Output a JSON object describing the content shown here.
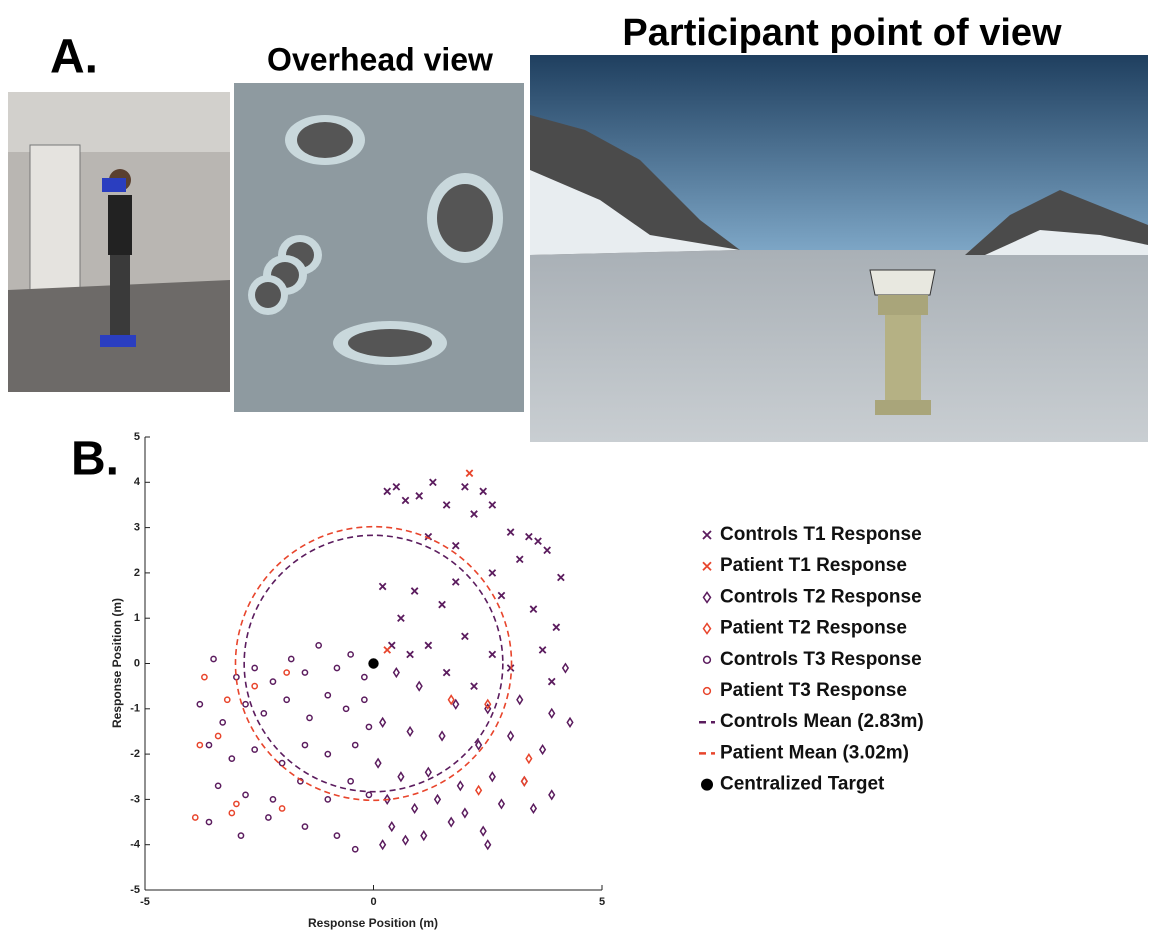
{
  "panel_a": {
    "label": "A.",
    "overhead_title": "Overhead view",
    "pov_title": "Participant point of view"
  },
  "chart_data": {
    "type": "scatter",
    "label": "B.",
    "xlabel": "Response Position (m)",
    "ylabel": "Response Position (m)",
    "xlim": [
      -5,
      5
    ],
    "ylim": [
      -5,
      5
    ],
    "xticks": [
      -5,
      0,
      5
    ],
    "yticks": [
      -5,
      -4,
      -3,
      -2,
      -1,
      0,
      1,
      2,
      3,
      4,
      5
    ],
    "series": [
      {
        "name": "Controls T1 Response",
        "color": "#5b1c5e",
        "marker": "x",
        "x": [
          0.3,
          0.5,
          0.7,
          1.0,
          1.3,
          1.6,
          2.0,
          2.4,
          2.6,
          2.2,
          1.2,
          3.0,
          3.4,
          3.6,
          3.8,
          4.1,
          3.2,
          2.6,
          1.8,
          0.9,
          0.2,
          0.6,
          1.5,
          2.8,
          3.5,
          4.0,
          3.7,
          2.0,
          1.2,
          0.8,
          2.6,
          3.0,
          1.6,
          2.2,
          0.4,
          1.8,
          3.9
        ],
        "y": [
          3.8,
          3.9,
          3.6,
          3.7,
          4.0,
          3.5,
          3.9,
          3.8,
          3.5,
          3.3,
          2.8,
          2.9,
          2.8,
          2.7,
          2.5,
          1.9,
          2.3,
          2.0,
          1.8,
          1.6,
          1.7,
          1.0,
          1.3,
          1.5,
          1.2,
          0.8,
          0.3,
          0.6,
          0.4,
          0.2,
          0.2,
          -0.1,
          -0.2,
          -0.5,
          0.4,
          2.6,
          -0.4
        ]
      },
      {
        "name": "Patient T1 Response",
        "color": "#e8452c",
        "marker": "x",
        "x": [
          2.1,
          0.3
        ],
        "y": [
          4.2,
          0.3
        ]
      },
      {
        "name": "Controls T2 Response",
        "color": "#5b1c5e",
        "marker": "diamond",
        "x": [
          0.5,
          1.0,
          1.8,
          2.5,
          3.2,
          3.9,
          4.3,
          0.2,
          0.8,
          1.5,
          2.3,
          3.0,
          3.7,
          0.1,
          0.6,
          1.2,
          1.9,
          2.6,
          3.3,
          3.9,
          0.3,
          0.9,
          1.4,
          2.0,
          2.8,
          3.5,
          0.4,
          1.1,
          1.7,
          2.4,
          0.2,
          0.7,
          2.5,
          4.2
        ],
        "y": [
          -0.2,
          -0.5,
          -0.9,
          -1.0,
          -0.8,
          -1.1,
          -1.3,
          -1.3,
          -1.5,
          -1.6,
          -1.8,
          -1.6,
          -1.9,
          -2.2,
          -2.5,
          -2.4,
          -2.7,
          -2.5,
          -2.6,
          -2.9,
          -3.0,
          -3.2,
          -3.0,
          -3.3,
          -3.1,
          -3.2,
          -3.6,
          -3.8,
          -3.5,
          -3.7,
          -4.0,
          -3.9,
          -4.0,
          -0.1
        ]
      },
      {
        "name": "Patient T2 Response",
        "color": "#e8452c",
        "marker": "diamond",
        "x": [
          1.7,
          2.5,
          3.4,
          3.3,
          2.3
        ],
        "y": [
          -0.8,
          -0.9,
          -2.1,
          -2.6,
          -2.8
        ]
      },
      {
        "name": "Controls T3 Response",
        "color": "#5b1c5e",
        "marker": "circle",
        "x": [
          -3.5,
          -3.0,
          -2.6,
          -2.2,
          -1.8,
          -1.5,
          -1.2,
          -0.8,
          -0.5,
          -0.2,
          -3.8,
          -3.3,
          -2.8,
          -2.4,
          -1.9,
          -1.4,
          -1.0,
          -0.6,
          -0.2,
          -3.6,
          -3.1,
          -2.6,
          -2.0,
          -1.5,
          -1.0,
          -0.4,
          -3.4,
          -2.8,
          -2.2,
          -1.6,
          -1.0,
          -0.5,
          -3.6,
          -2.9,
          -2.3,
          -1.5,
          -0.8,
          -0.4,
          -0.1,
          -0.1
        ],
        "y": [
          0.1,
          -0.3,
          -0.1,
          -0.4,
          0.1,
          -0.2,
          0.4,
          -0.1,
          0.2,
          -0.3,
          -0.9,
          -1.3,
          -0.9,
          -1.1,
          -0.8,
          -1.2,
          -0.7,
          -1.0,
          -0.8,
          -1.8,
          -2.1,
          -1.9,
          -2.2,
          -1.8,
          -2.0,
          -1.8,
          -2.7,
          -2.9,
          -3.0,
          -2.6,
          -3.0,
          -2.6,
          -3.5,
          -3.8,
          -3.4,
          -3.6,
          -3.8,
          -4.1,
          -2.9,
          -1.4
        ]
      },
      {
        "name": "Patient T3 Response",
        "color": "#e8452c",
        "marker": "circle",
        "x": [
          -3.8,
          -3.9,
          -3.4,
          -3.2,
          -3.0,
          -2.0,
          -1.9,
          -2.6,
          -3.7,
          -3.1
        ],
        "y": [
          -1.8,
          -3.4,
          -1.6,
          -0.8,
          -3.1,
          -3.2,
          -0.2,
          -0.5,
          -0.3,
          -3.3
        ]
      },
      {
        "name": "Controls Mean (2.83m)",
        "color": "#5b1c5e",
        "marker": "dashed-circle",
        "radius": 2.83
      },
      {
        "name": "Patient Mean (3.02m)",
        "color": "#e8452c",
        "marker": "dashed-circle",
        "radius": 3.02
      },
      {
        "name": "Centralized Target",
        "color": "#000000",
        "marker": "dot",
        "x": [
          0
        ],
        "y": [
          0
        ]
      }
    ]
  }
}
